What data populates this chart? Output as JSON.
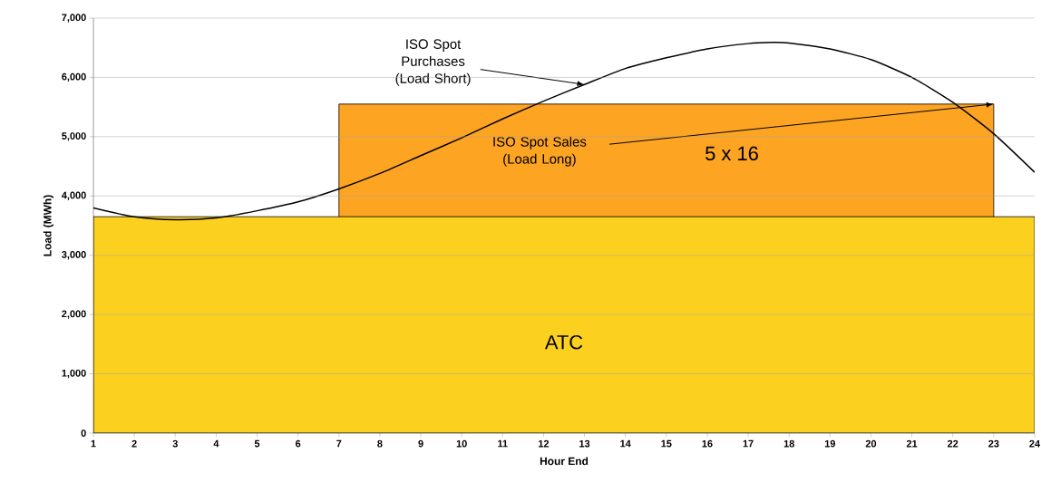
{
  "chart_data": {
    "type": "line",
    "xlabel": "Hour End",
    "ylabel": "Load (MWh)",
    "xlim": [
      1,
      24
    ],
    "xticks": [
      1,
      2,
      3,
      4,
      5,
      6,
      7,
      8,
      9,
      10,
      11,
      12,
      13,
      14,
      15,
      16,
      17,
      18,
      19,
      20,
      21,
      22,
      23,
      24
    ],
    "ylim": [
      0,
      7000
    ],
    "yticks": [
      {
        "value": 0,
        "label": "0"
      },
      {
        "value": 1000,
        "label": "1,000"
      },
      {
        "value": 2000,
        "label": "2,000"
      },
      {
        "value": 3000,
        "label": "3,000"
      },
      {
        "value": 4000,
        "label": "4,000"
      },
      {
        "value": 5000,
        "label": "5,000"
      },
      {
        "value": 6000,
        "label": "6,000"
      },
      {
        "value": 7000,
        "label": "7,000"
      }
    ],
    "grid": "y",
    "marker": "none",
    "series": [
      {
        "name": "5 x 16",
        "type": "area",
        "color": "#fda422",
        "x": [
          7,
          23
        ],
        "values": [
          5550,
          5550
        ]
      },
      {
        "name": "ATC",
        "type": "area",
        "color": "#fcd01f",
        "x": [
          1,
          24
        ],
        "values": [
          3650,
          3650
        ]
      },
      {
        "color": "#000000",
        "x": [
          1,
          2,
          3,
          4,
          5,
          6,
          7,
          8,
          9,
          10,
          11,
          12,
          13,
          14,
          15,
          16,
          17,
          17.6,
          18,
          19,
          20,
          21,
          22,
          23,
          24
        ],
        "values": [
          3800,
          3650,
          3600,
          3630,
          3750,
          3900,
          4120,
          4380,
          4680,
          4980,
          5300,
          5600,
          5880,
          6150,
          6330,
          6480,
          6570,
          6590,
          6580,
          6480,
          6300,
          6000,
          5580,
          5050,
          4400
        ]
      }
    ],
    "annotations": [
      {
        "text": "ISO Spot Purchases (Load Short)",
        "x": 13,
        "y": 5880
      },
      "ISO Spot Sales (Load Long)"
    ]
  }
}
